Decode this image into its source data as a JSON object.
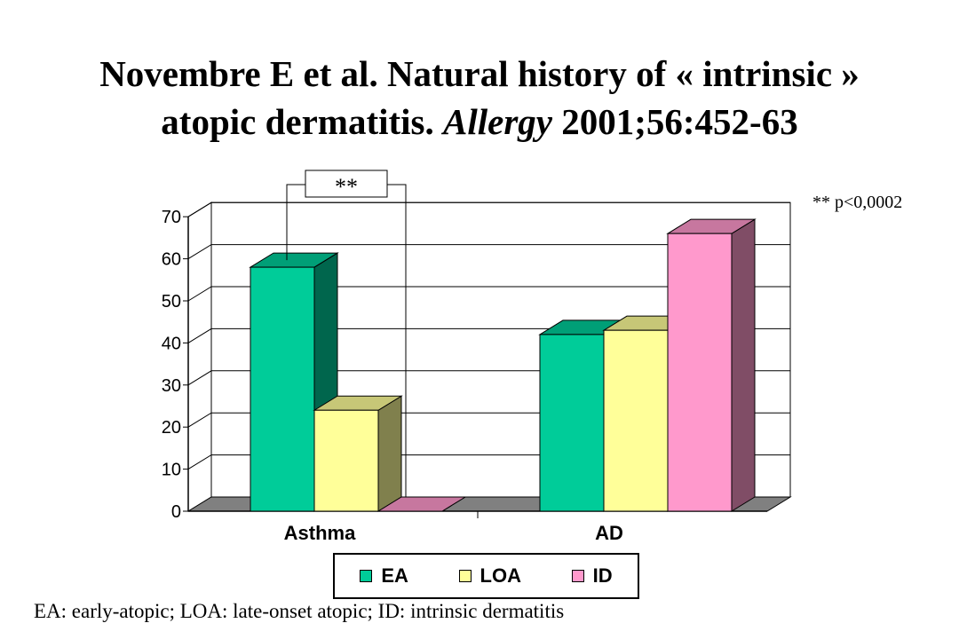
{
  "title": {
    "line1": "Novembre E et al. Natural history of « intrinsic »",
    "line2_pre": "atopic dermatitis. ",
    "line2_journal": "Allergy",
    "line2_post": " 2001;56:452-63"
  },
  "significance_note": "** p<0,0002",
  "significance_marker": "**",
  "footnote": "EA: early-atopic; LOA: late-onset atopic; ID: intrinsic dermatitis",
  "chart_data": {
    "type": "bar",
    "categories": [
      "Asthma",
      "AD"
    ],
    "series": [
      {
        "name": "EA",
        "values": [
          58,
          42
        ],
        "color": "#00CC99"
      },
      {
        "name": "LOA",
        "values": [
          24,
          43
        ],
        "color": "#FFFF99"
      },
      {
        "name": "ID",
        "values": [
          0,
          66
        ],
        "color": "#FF99CC"
      }
    ],
    "yticks": [
      "0",
      "10",
      "20",
      "30",
      "40",
      "50",
      "60",
      "70"
    ],
    "ylim": [
      0,
      70
    ],
    "grid": true,
    "legend_position": "bottom",
    "three_d": true
  }
}
